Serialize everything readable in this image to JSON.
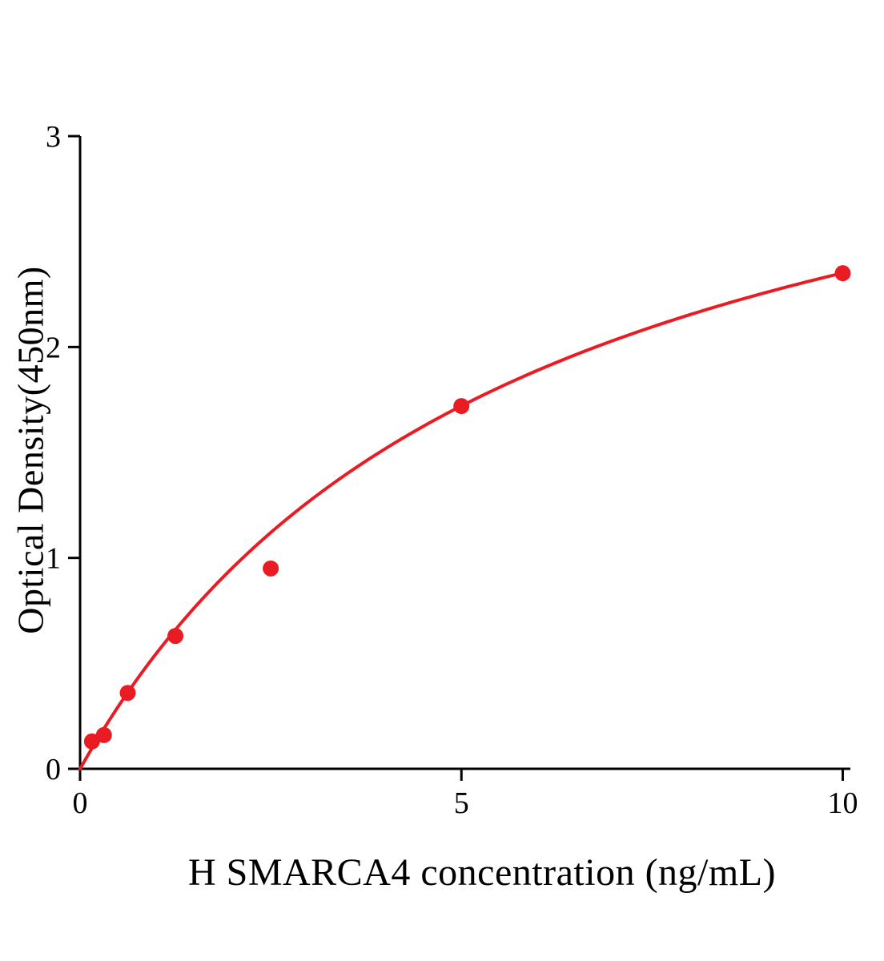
{
  "chart_data": {
    "type": "scatter",
    "title": "",
    "xlabel": "H SMARCA4 concentration (ng/mL)",
    "ylabel": "Optical Density(450nm)",
    "xlim": [
      0,
      10.1
    ],
    "ylim": [
      0,
      3
    ],
    "xticks": [
      0,
      5,
      10
    ],
    "yticks": [
      0,
      1,
      2,
      3
    ],
    "grid": false,
    "legend": false,
    "accent_color": "#ea1c23",
    "axis_color": "#000000",
    "points": [
      {
        "x": 0.156,
        "y": 0.13
      },
      {
        "x": 0.3125,
        "y": 0.16
      },
      {
        "x": 0.625,
        "y": 0.36
      },
      {
        "x": 1.25,
        "y": 0.63
      },
      {
        "x": 2.5,
        "y": 0.95
      },
      {
        "x": 5,
        "y": 1.72
      },
      {
        "x": 10,
        "y": 2.35
      }
    ],
    "fit_curve": {
      "type": "saturation",
      "formula": "y = a*x/(b+x)",
      "a": 3.71,
      "b": 5.78,
      "x_start": 0,
      "x_end": 10
    }
  }
}
